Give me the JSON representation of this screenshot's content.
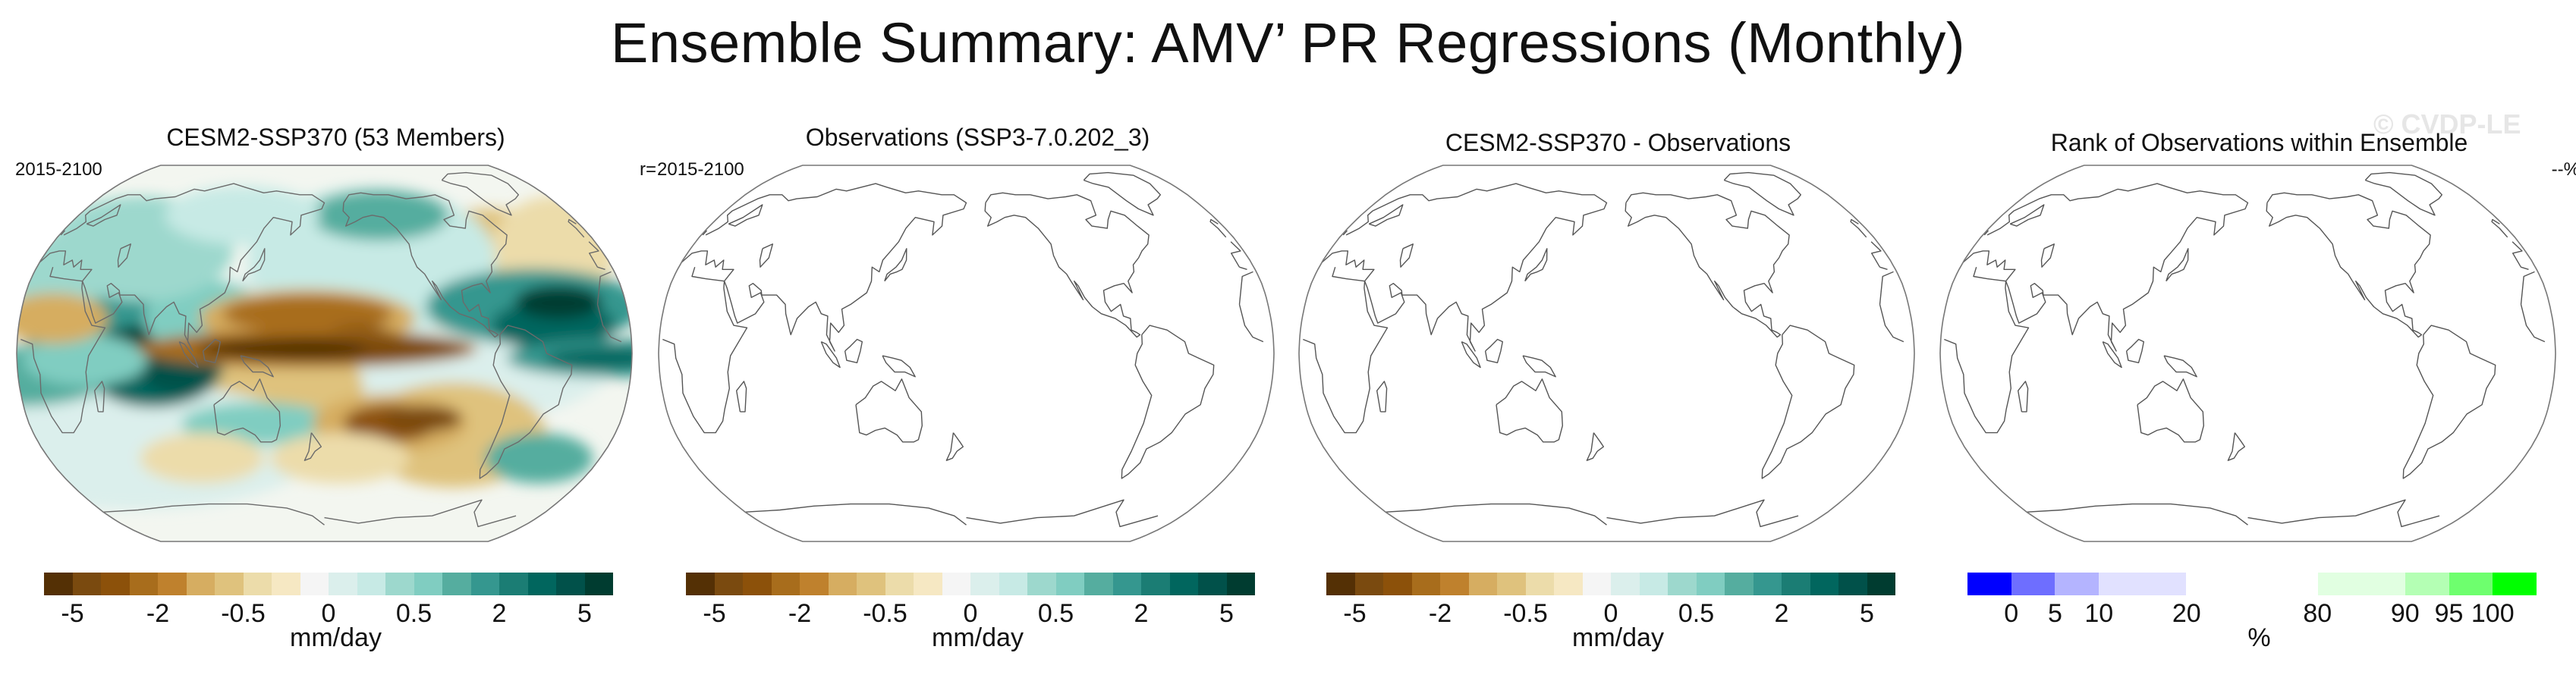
{
  "figure": {
    "title": "Ensemble Summary: AMV’ PR Regressions (Monthly)",
    "watermark": "© CVDP-LE"
  },
  "panels": [
    {
      "title": "CESM2-SSP370 (53 Members)",
      "corner_left": "2015-2100",
      "corner_right": "r=",
      "filled": true,
      "colorbar": {
        "colors": [
          "#543005",
          "#7a4a0f",
          "#8c510a",
          "#a86d1c",
          "#bf812d",
          "#d6ad61",
          "#dfc27d",
          "#ecdcaa",
          "#f6e8c3",
          "#f5f5f5",
          "#dbefec",
          "#c7eae5",
          "#9dd8cd",
          "#80cdc1",
          "#55ad9f",
          "#35978f",
          "#1b7d74",
          "#01665e",
          "#01514a",
          "#003c30"
        ],
        "tick_labels": [
          "-5",
          "-2",
          "-0.5",
          "0",
          "0.5",
          "2",
          "5"
        ],
        "units": "mm/day"
      }
    },
    {
      "title": "Observations (SSP3-7.0.202_3)",
      "corner_left": "2015-2100",
      "corner_right": "",
      "filled": false,
      "colorbar": {
        "colors": [
          "#543005",
          "#7a4a0f",
          "#8c510a",
          "#a86d1c",
          "#bf812d",
          "#d6ad61",
          "#dfc27d",
          "#ecdcaa",
          "#f6e8c3",
          "#f5f5f5",
          "#dbefec",
          "#c7eae5",
          "#9dd8cd",
          "#80cdc1",
          "#55ad9f",
          "#35978f",
          "#1b7d74",
          "#01665e",
          "#01514a",
          "#003c30"
        ],
        "tick_labels": [
          "-5",
          "-2",
          "-0.5",
          "0",
          "0.5",
          "2",
          "5"
        ],
        "units": "mm/day"
      }
    },
    {
      "title": "CESM2-SSP370 - Observations",
      "corner_left": "",
      "corner_right": "",
      "filled": false,
      "colorbar": {
        "colors": [
          "#543005",
          "#7a4a0f",
          "#8c510a",
          "#a86d1c",
          "#bf812d",
          "#d6ad61",
          "#dfc27d",
          "#ecdcaa",
          "#f6e8c3",
          "#f5f5f5",
          "#dbefec",
          "#c7eae5",
          "#9dd8cd",
          "#80cdc1",
          "#55ad9f",
          "#35978f",
          "#1b7d74",
          "#01665e",
          "#01514a",
          "#003c30"
        ],
        "tick_labels": [
          "-5",
          "-2",
          "-0.5",
          "0",
          "0.5",
          "2",
          "5"
        ],
        "units": "mm/day"
      }
    },
    {
      "title": "Rank of Observations within Ensemble",
      "corner_left": "",
      "corner_right": "--%",
      "filled": false,
      "colorbar": {
        "colors": [
          "#0000ff",
          "#6e6eff",
          "#b4b4ff",
          "#e1e1ff",
          "#e1e1ff",
          "#ffffff",
          "#ffffff",
          "#ffffff",
          "#e1ffe1",
          "#e1ffe1",
          "#b4ffb4",
          "#6eff6e",
          "#00ff00"
        ],
        "tick_labels": [
          "0",
          "5",
          "10",
          "20",
          "80",
          "90",
          "95",
          "100"
        ],
        "units": "%"
      }
    }
  ]
}
